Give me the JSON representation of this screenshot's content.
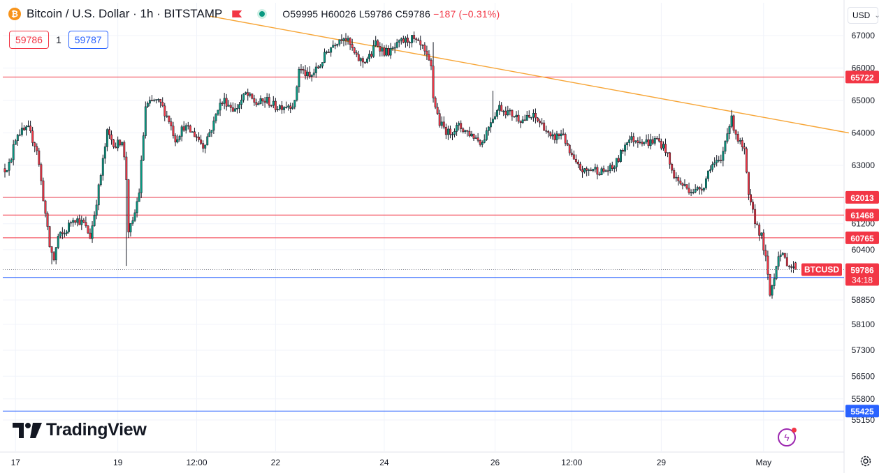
{
  "header": {
    "symbol_title": "Bitcoin / U.S. Dollar · 1h · BITSTAMP",
    "coin_glyph": "₿",
    "open": "O59995",
    "high": "H60026",
    "low": "L59786",
    "close": "C59786",
    "change": "−187 (−0.31%)",
    "sell_price": "59786",
    "spread": "1",
    "buy_price": "59787"
  },
  "currency": {
    "label": "USD"
  },
  "branding": {
    "logo_text": "TradingView"
  },
  "colors": {
    "up": "#089981",
    "down": "#f23645",
    "support_resistance": "#f23645",
    "support_blue": "#2962ff",
    "trendline": "#f7a536",
    "last_price_tag": "#f23645"
  },
  "icons": {
    "settings": "gear-icon",
    "alert": "lightning-icon"
  },
  "chart_data": {
    "type": "candlestick",
    "title": "Bitcoin / U.S. Dollar · 1h · BITSTAMP",
    "ylabel": "USD",
    "ylim": [
      54900,
      67500
    ],
    "y_ticks": [
      67000,
      66000,
      65000,
      64000,
      63000,
      62000,
      61200,
      60400,
      58850,
      58100,
      57300,
      56500,
      55800,
      55150
    ],
    "x_ticks": [
      "17",
      "19",
      "12:00",
      "22",
      "24",
      "26",
      "12:00",
      "29",
      "May"
    ],
    "x_tick_index": [
      5,
      53,
      90,
      127,
      178,
      230,
      266,
      308,
      356
    ],
    "grid": true,
    "horizontal_levels": [
      {
        "label": "65722",
        "value": 65722,
        "color": "red"
      },
      {
        "label": "62013",
        "value": 62013,
        "color": "red"
      },
      {
        "label": "61468",
        "value": 61468,
        "color": "red"
      },
      {
        "label": "60765",
        "value": 60765,
        "color": "red"
      },
      {
        "label": "59544",
        "value": 59544,
        "color": "blue"
      },
      {
        "label": "55425",
        "value": 55425,
        "color": "blue"
      }
    ],
    "last_price": {
      "symbol": "BTCUSD",
      "value": 59786,
      "label": "59786",
      "countdown": "34:18"
    },
    "trendline": {
      "from": [
        96,
        67600
      ],
      "to": [
        396,
        64000
      ]
    },
    "path_anchors": [
      [
        0,
        62900
      ],
      [
        3,
        63100
      ],
      [
        4,
        63700
      ],
      [
        6,
        64000
      ],
      [
        11,
        64100
      ],
      [
        15,
        63500
      ],
      [
        18,
        62000
      ],
      [
        21,
        60500
      ],
      [
        23,
        60100
      ],
      [
        25,
        60800
      ],
      [
        28,
        60900
      ],
      [
        32,
        61400
      ],
      [
        37,
        61200
      ],
      [
        40,
        60800
      ],
      [
        42,
        61500
      ],
      [
        45,
        62700
      ],
      [
        48,
        64000
      ],
      [
        52,
        63600
      ],
      [
        55,
        63800
      ],
      [
        57,
        62600
      ],
      [
        58,
        61000
      ],
      [
        60,
        61200
      ],
      [
        63,
        62200
      ],
      [
        66,
        64800
      ],
      [
        70,
        65000
      ],
      [
        73,
        64900
      ],
      [
        77,
        64400
      ],
      [
        80,
        63800
      ],
      [
        84,
        64200
      ],
      [
        90,
        63900
      ],
      [
        93,
        63600
      ],
      [
        98,
        64300
      ],
      [
        100,
        64800
      ],
      [
        103,
        65000
      ],
      [
        108,
        64700
      ],
      [
        113,
        65200
      ],
      [
        118,
        64900
      ],
      [
        123,
        65000
      ],
      [
        127,
        64800
      ],
      [
        136,
        64900
      ],
      [
        138,
        66000
      ],
      [
        143,
        65700
      ],
      [
        148,
        66100
      ],
      [
        151,
        66500
      ],
      [
        155,
        66800
      ],
      [
        159,
        67000
      ],
      [
        162,
        66700
      ],
      [
        165,
        66300
      ],
      [
        168,
        66200
      ],
      [
        172,
        66400
      ],
      [
        174,
        66800
      ],
      [
        178,
        66500
      ],
      [
        181,
        66500
      ],
      [
        186,
        66800
      ],
      [
        191,
        66900
      ],
      [
        196,
        66600
      ],
      [
        200,
        66000
      ],
      [
        201,
        65100
      ],
      [
        204,
        64300
      ],
      [
        208,
        64000
      ],
      [
        213,
        64200
      ],
      [
        220,
        63900
      ],
      [
        224,
        63700
      ],
      [
        228,
        64400
      ],
      [
        232,
        64800
      ],
      [
        237,
        64600
      ],
      [
        243,
        64400
      ],
      [
        248,
        64500
      ],
      [
        253,
        64200
      ],
      [
        256,
        63800
      ],
      [
        262,
        64000
      ],
      [
        264,
        63500
      ],
      [
        268,
        63000
      ],
      [
        272,
        62800
      ],
      [
        276,
        62900
      ],
      [
        280,
        62800
      ],
      [
        285,
        62900
      ],
      [
        288,
        63200
      ],
      [
        292,
        63800
      ],
      [
        298,
        63800
      ],
      [
        302,
        63700
      ],
      [
        306,
        63800
      ],
      [
        310,
        63500
      ],
      [
        313,
        62800
      ],
      [
        316,
        62500
      ],
      [
        320,
        62300
      ],
      [
        324,
        62200
      ],
      [
        328,
        62400
      ],
      [
        331,
        63000
      ],
      [
        336,
        63100
      ],
      [
        339,
        64100
      ],
      [
        341,
        64400
      ],
      [
        344,
        63800
      ],
      [
        347,
        63400
      ],
      [
        349,
        62000
      ],
      [
        352,
        61300
      ],
      [
        355,
        60800
      ],
      [
        357,
        60100
      ],
      [
        359,
        59000
      ],
      [
        361,
        59600
      ],
      [
        363,
        60300
      ],
      [
        366,
        60100
      ],
      [
        370,
        59790
      ],
      [
        371,
        59786
      ]
    ]
  }
}
